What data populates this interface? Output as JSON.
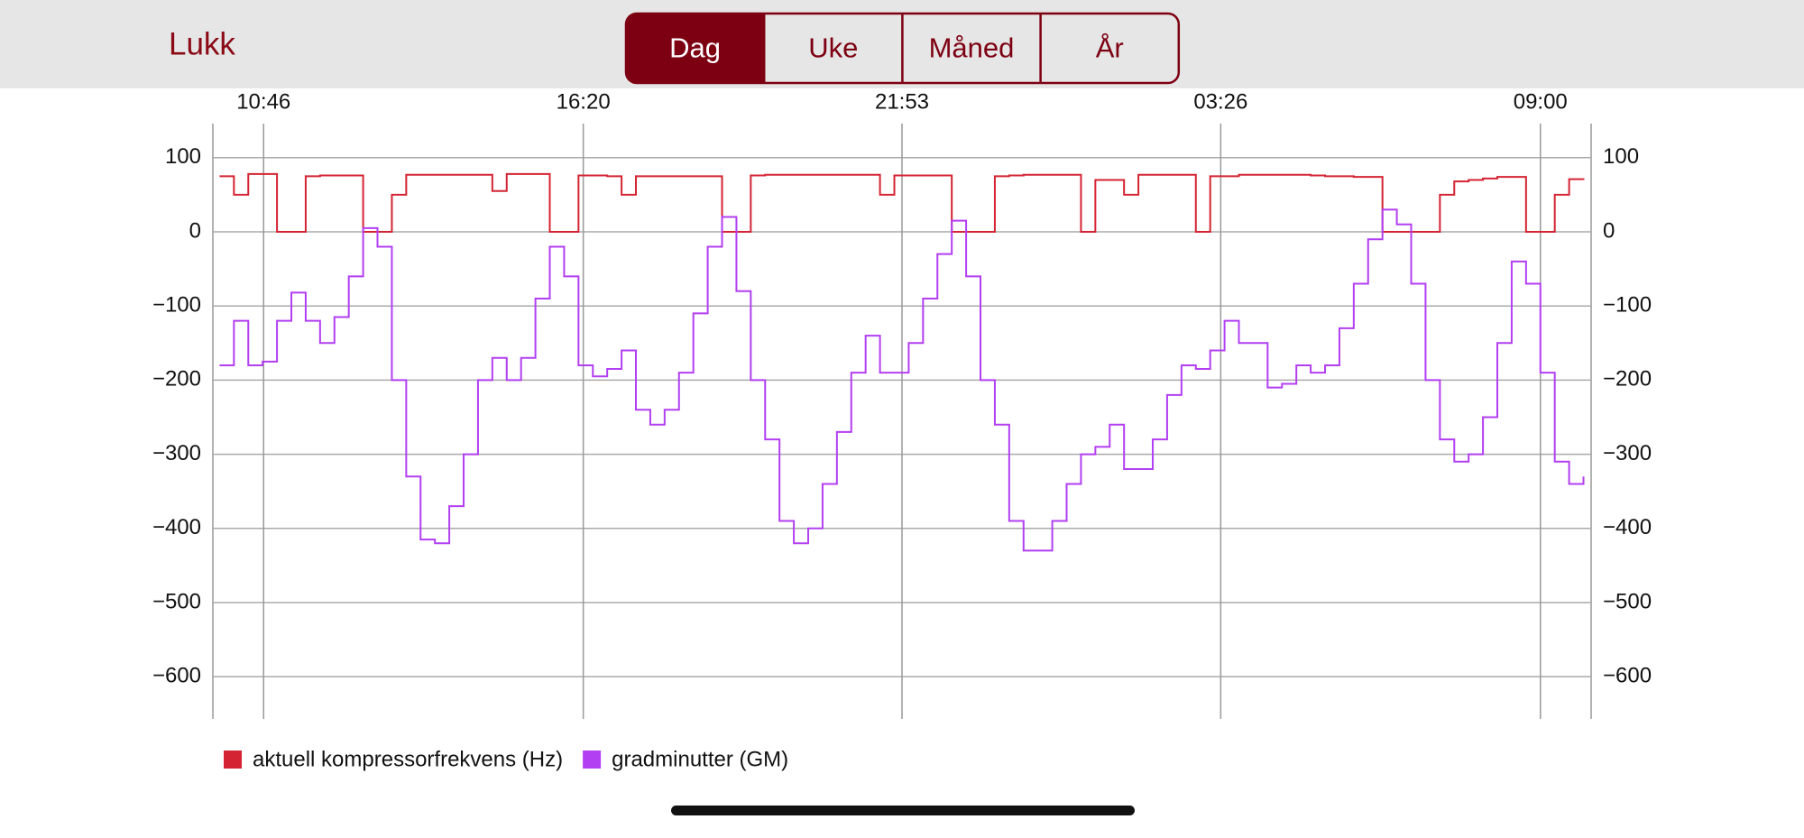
{
  "toolbar": {
    "close": "Lukk",
    "tabs": [
      "Dag",
      "Uke",
      "Måned",
      "År"
    ],
    "selected": 0
  },
  "chart_data": {
    "type": "line",
    "x": [
      "10:00",
      "10:15",
      "10:30",
      "10:45",
      "11:00",
      "11:15",
      "11:30",
      "11:45",
      "12:00",
      "12:15",
      "12:30",
      "12:45",
      "13:00",
      "13:15",
      "13:30",
      "13:45",
      "14:00",
      "14:15",
      "14:30",
      "14:45",
      "15:00",
      "15:15",
      "15:30",
      "15:45",
      "16:00",
      "16:15",
      "16:30",
      "16:45",
      "17:00",
      "17:15",
      "17:30",
      "17:45",
      "18:00",
      "18:15",
      "18:30",
      "18:45",
      "19:00",
      "19:15",
      "19:30",
      "19:45",
      "20:00",
      "20:15",
      "20:30",
      "20:45",
      "21:00",
      "21:15",
      "21:30",
      "21:45",
      "22:00",
      "22:15",
      "22:30",
      "22:45",
      "23:00",
      "23:15",
      "23:30",
      "23:45",
      "00:00",
      "00:15",
      "00:30",
      "00:45",
      "01:00",
      "01:15",
      "01:30",
      "01:45",
      "02:00",
      "02:15",
      "02:30",
      "02:45",
      "03:00",
      "03:15",
      "03:30",
      "03:45",
      "04:00",
      "04:15",
      "04:30",
      "04:45",
      "05:00",
      "05:15",
      "05:30",
      "05:45",
      "06:00",
      "06:15",
      "06:30",
      "06:45",
      "07:00",
      "07:15",
      "07:30",
      "07:45",
      "08:00",
      "08:15",
      "08:30",
      "08:45",
      "09:00",
      "09:15",
      "09:30",
      "09:45"
    ],
    "xlim": [
      "09:53",
      "09:53"
    ],
    "xticks": [
      "10:46",
      "16:20",
      "21:53",
      "03:26",
      "09:00"
    ],
    "ylim": [
      -657,
      146
    ],
    "yticks": [
      100,
      0,
      {
        "value": -100,
        "label": "−100"
      },
      {
        "value": -200,
        "label": "−200"
      },
      {
        "value": -300,
        "label": "−300"
      },
      {
        "value": -400,
        "label": "−400"
      },
      {
        "value": -500,
        "label": "−500"
      },
      {
        "value": -600,
        "label": "−600"
      }
    ],
    "y2lim": [
      -657,
      146
    ],
    "y2ticks": [
      100,
      0,
      {
        "value": -100,
        "label": "−100"
      },
      {
        "value": -200,
        "label": "−200"
      },
      {
        "value": -300,
        "label": "−300"
      },
      {
        "value": -400,
        "label": "−400"
      },
      {
        "value": -500,
        "label": "−500"
      },
      {
        "value": -600,
        "label": "−600"
      }
    ],
    "grid": true,
    "series": [
      {
        "name": "aktuell kompressorfrekvens (Hz)",
        "color": "#d42433",
        "values": [
          75,
          50,
          78,
          78,
          0,
          0,
          75,
          76,
          76,
          76,
          0,
          0,
          50,
          77,
          77,
          77,
          77,
          77,
          77,
          55,
          78,
          78,
          78,
          0,
          0,
          76,
          76,
          75,
          50,
          75,
          75,
          75,
          75,
          75,
          75,
          0,
          0,
          76,
          77,
          77,
          77,
          77,
          77,
          77,
          77,
          77,
          50,
          76,
          76,
          76,
          76,
          0,
          0,
          0,
          75,
          76,
          77,
          77,
          77,
          77,
          0,
          70,
          70,
          50,
          77,
          77,
          77,
          77,
          0,
          75,
          75,
          77,
          77,
          77,
          77,
          77,
          76,
          75,
          75,
          74,
          74,
          0,
          0,
          0,
          0,
          50,
          68,
          70,
          72,
          74,
          74,
          0,
          0,
          50,
          71,
          70
        ]
      },
      {
        "name": "gradminutter (GM)",
        "color": "#b23ff2",
        "axis": "y2",
        "values": [
          -180,
          -120,
          -180,
          -175,
          -120,
          -82,
          -120,
          -150,
          -115,
          -60,
          5,
          -20,
          -200,
          -330,
          -415,
          -420,
          -370,
          -300,
          -200,
          -170,
          -200,
          -170,
          -90,
          -20,
          -60,
          -180,
          -195,
          -185,
          -160,
          -240,
          -260,
          -240,
          -190,
          -110,
          -20,
          20,
          -80,
          -200,
          -280,
          -390,
          -420,
          -400,
          -340,
          -270,
          -190,
          -140,
          -190,
          -190,
          -150,
          -90,
          -30,
          15,
          -60,
          -200,
          -260,
          -390,
          -430,
          -430,
          -390,
          -340,
          -300,
          -290,
          -260,
          -320,
          -320,
          -280,
          -220,
          -180,
          -185,
          -160,
          -120,
          -150,
          -150,
          -210,
          -205,
          -180,
          -190,
          -180,
          -130,
          -70,
          -10,
          30,
          10,
          -70,
          -200,
          -280,
          -310,
          -300,
          -250,
          -150,
          -40,
          -70,
          -190,
          -310,
          -340,
          -330
        ]
      }
    ]
  }
}
